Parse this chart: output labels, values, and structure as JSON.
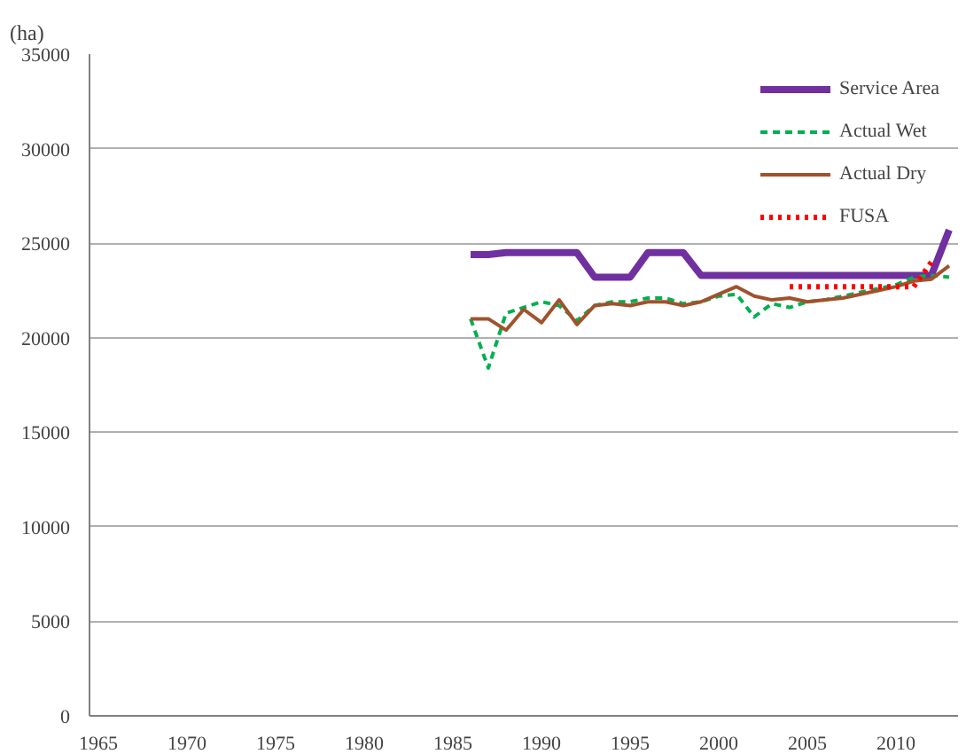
{
  "chart_data": {
    "type": "line",
    "ylabel": "(ha)",
    "x": [
      1986,
      1987,
      1988,
      1989,
      1990,
      1991,
      1992,
      1993,
      1994,
      1995,
      1996,
      1997,
      1998,
      1999,
      2000,
      2001,
      2002,
      2003,
      2004,
      2005,
      2006,
      2007,
      2008,
      2009,
      2010,
      2011,
      2012,
      2013
    ],
    "xlim": [
      1964.5,
      2013.5
    ],
    "xticks": [
      1965,
      1970,
      1975,
      1980,
      1985,
      1990,
      1995,
      2000,
      2005,
      2010
    ],
    "ylim": [
      0,
      35000
    ],
    "yticks": [
      0,
      5000,
      10000,
      15000,
      20000,
      25000,
      30000,
      35000
    ],
    "grid": "y",
    "legend": "top right",
    "series": [
      {
        "name": "Service Area",
        "color": "#7030a0",
        "line_style": "solid",
        "values": [
          24400,
          24400,
          24500,
          24500,
          24500,
          24500,
          24500,
          23200,
          23200,
          23200,
          24500,
          24500,
          24500,
          23300,
          23300,
          23300,
          23300,
          23300,
          23300,
          23300,
          23300,
          23300,
          23300,
          23300,
          23300,
          23300,
          23300,
          25700
        ]
      },
      {
        "name": "Actual Wet",
        "color": "#00b050",
        "line_style": "dashed",
        "values": [
          21000,
          18400,
          21300,
          21600,
          21900,
          21700,
          20900,
          21700,
          21900,
          21900,
          22100,
          22100,
          21800,
          21900,
          22200,
          22300,
          21100,
          21800,
          21600,
          21900,
          22000,
          22200,
          22400,
          22600,
          22800,
          23200,
          23300,
          23200
        ]
      },
      {
        "name": "Actual Dry",
        "color": "#a0522d",
        "line_style": "solid",
        "values": [
          21000,
          21000,
          20400,
          21500,
          20800,
          22000,
          20700,
          21700,
          21800,
          21700,
          21900,
          21900,
          21700,
          21900,
          22300,
          22700,
          22200,
          22000,
          22100,
          21900,
          22000,
          22100,
          22300,
          22500,
          22700,
          23000,
          23100,
          23800
        ]
      },
      {
        "name": "FUSA",
        "color": "#ff0000",
        "line_style": "dotted",
        "x": [
          2004,
          2005,
          2006,
          2007,
          2008,
          2009,
          2010,
          2011,
          2012
        ],
        "values": [
          22700,
          22700,
          22700,
          22700,
          22700,
          22700,
          22700,
          22700,
          24000
        ]
      }
    ]
  }
}
